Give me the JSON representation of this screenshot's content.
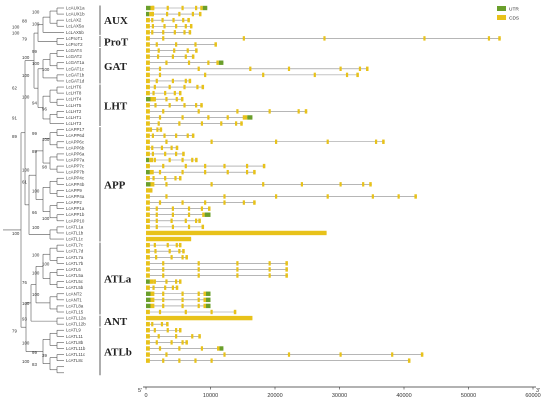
{
  "legend": {
    "utr_label": "UTR",
    "cds_label": "CDS",
    "utr_color": "#6a9f2b",
    "cds_color": "#e8c21a"
  },
  "axis": {
    "ticks": [
      "0",
      "10000",
      "20000",
      "30000",
      "40000",
      "50000",
      "60000"
    ],
    "max": 60000,
    "five_prime": "5'",
    "three_prime": "3'"
  },
  "families": [
    {
      "name": "AUX",
      "start": 0,
      "end": 4
    },
    {
      "name": "ProT",
      "start": 5,
      "end": 6
    },
    {
      "name": "GAT",
      "start": 7,
      "end": 12
    },
    {
      "name": "LHT",
      "start": 13,
      "end": 19
    },
    {
      "name": "APP",
      "start": 20,
      "end": 38
    },
    {
      "name": "ATLa",
      "start": 39,
      "end": 50
    },
    {
      "name": "ANT",
      "start": 51,
      "end": 52
    },
    {
      "name": "ATLb",
      "start": 53,
      "end": 60
    }
  ],
  "genes": [
    {
      "name": "LcAUX1a",
      "len": 9500,
      "utr5": 700,
      "utr3": 700,
      "exons": [
        900,
        3200,
        5500,
        7600
      ]
    },
    {
      "name": "LcAUX1b",
      "len": 8600,
      "utr5": 500,
      "utr3": 0,
      "exons": [
        900,
        3100,
        5000,
        7100
      ]
    },
    {
      "name": "LcLAX2",
      "len": 6800,
      "utr5": 0,
      "utr3": 0,
      "exons": [
        800,
        2400,
        4100,
        5600
      ]
    },
    {
      "name": "LcLAX5a",
      "len": 7200,
      "utr5": 0,
      "utr3": 0,
      "exons": [
        900,
        2700,
        4500,
        6000
      ]
    },
    {
      "name": "LcLAX5b",
      "len": 7000,
      "utr5": 0,
      "utr3": 0,
      "exons": [
        800,
        2500,
        4300,
        5800
      ]
    },
    {
      "name": "LcProT1",
      "len": 55000,
      "utr5": 0,
      "utr3": 0,
      "exons": [
        2500,
        15000,
        27500,
        43000,
        53000
      ]
    },
    {
      "name": "LcProT2",
      "len": 11000,
      "utr5": 0,
      "utr3": 0,
      "exons": [
        1500,
        4500,
        7500
      ]
    },
    {
      "name": "LcGAT4",
      "len": 8000,
      "utr5": 0,
      "utr3": 0,
      "exons": [
        1800,
        4200,
        6300
      ]
    },
    {
      "name": "LcGAT2",
      "len": 7500,
      "utr5": 0,
      "utr3": 0,
      "exons": [
        1700,
        4000,
        6000
      ]
    },
    {
      "name": "LcGAT1a",
      "len": 12000,
      "utr5": 0,
      "utr3": 700,
      "exons": [
        3000,
        6500,
        9500
      ]
    },
    {
      "name": "LcGAT1c",
      "len": 34500,
      "utr5": 0,
      "utr3": 0,
      "exons": [
        2000,
        8000,
        16000,
        22000,
        30000,
        33000
      ]
    },
    {
      "name": "LcGAT1b",
      "len": 33000,
      "utr5": 0,
      "utr3": 0,
      "exons": [
        2000,
        9000,
        18000,
        26000,
        31000
      ]
    },
    {
      "name": "LcGAT1d",
      "len": 7000,
      "utr5": 0,
      "utr3": 0,
      "exons": [
        1500,
        4000,
        6000
      ]
    },
    {
      "name": "LcLHT6",
      "len": 9000,
      "utr5": 0,
      "utr3": 0,
      "exons": [
        1200,
        3500,
        5800,
        7800
      ]
    },
    {
      "name": "LcLHT8",
      "len": 5500,
      "utr5": 0,
      "utr3": 0,
      "exons": [
        1000,
        2800,
        4300
      ]
    },
    {
      "name": "LcLHT4",
      "len": 5800,
      "utr5": 700,
      "utr3": 0,
      "exons": [
        1200,
        3000,
        4600
      ]
    },
    {
      "name": "LcLHT5",
      "len": 8800,
      "utr5": 0,
      "utr3": 0,
      "exons": [
        1300,
        3500,
        5800,
        7600
      ]
    },
    {
      "name": "LcLHT2",
      "len": 25000,
      "utr5": 0,
      "utr3": 0,
      "exons": [
        2500,
        8000,
        14000,
        19000,
        23500
      ]
    },
    {
      "name": "LcLHT1",
      "len": 16500,
      "utr5": 0,
      "utr3": 800,
      "exons": [
        2000,
        5500,
        9500,
        12500,
        15000
      ]
    },
    {
      "name": "LcLHT3",
      "len": 15000,
      "utr5": 0,
      "utr3": 0,
      "exons": [
        1800,
        5000,
        8500,
        11500,
        13800
      ]
    },
    {
      "name": "LcAPP17",
      "len": 2500,
      "utr5": 0,
      "utr3": 0,
      "exons": [
        600,
        1600
      ]
    },
    {
      "name": "LcAPP6d",
      "len": 7500,
      "utr5": 0,
      "utr3": 0,
      "exons": [
        900,
        2700,
        4500,
        6300
      ]
    },
    {
      "name": "LcAPP6c",
      "len": 37000,
      "utr5": 0,
      "utr3": 0,
      "exons": [
        3000,
        10000,
        20000,
        28000,
        35500
      ]
    },
    {
      "name": "LcAPP6b",
      "len": 5000,
      "utr5": 0,
      "utr3": 0,
      "exons": [
        800,
        2300,
        3800
      ]
    },
    {
      "name": "LcAPP6a",
      "len": 6000,
      "utr5": 0,
      "utr3": 0,
      "exons": [
        900,
        2800,
        4500
      ]
    },
    {
      "name": "LcAPP7a",
      "len": 8000,
      "utr5": 500,
      "utr3": 0,
      "exons": [
        1200,
        3500,
        5500,
        7000
      ]
    },
    {
      "name": "LcAPP7c",
      "len": 18500,
      "utr5": 0,
      "utr3": 0,
      "exons": [
        2500,
        6000,
        9000,
        12000,
        15500
      ]
    },
    {
      "name": "LcAPP7b",
      "len": 17000,
      "utr5": 600,
      "utr3": 0,
      "exons": [
        2000,
        5500,
        9000,
        12500,
        15500
      ]
    },
    {
      "name": "LcAPP4c",
      "len": 5500,
      "utr5": 0,
      "utr3": 0,
      "exons": [
        1000,
        2800,
        4400
      ]
    },
    {
      "name": "LcAPP4b",
      "len": 35000,
      "utr5": 700,
      "utr3": 0,
      "exons": [
        3000,
        10000,
        18000,
        24000,
        30000,
        33500
      ]
    },
    {
      "name": "LcAPP9",
      "len": 1000,
      "utr5": 0,
      "utr3": 0,
      "exons": []
    },
    {
      "name": "LcAPP4a",
      "len": 42000,
      "utr5": 0,
      "utr3": 0,
      "exons": [
        3000,
        12000,
        20000,
        28000,
        35000,
        39000
      ]
    },
    {
      "name": "LcAPP2",
      "len": 17000,
      "utr5": 0,
      "utr3": 0,
      "exons": [
        2000,
        5500,
        9000,
        12000,
        15000
      ]
    },
    {
      "name": "LcAPP1a",
      "len": 10000,
      "utr5": 0,
      "utr3": 0,
      "exons": [
        1500,
        4000,
        6500,
        8500
      ]
    },
    {
      "name": "LcAPP1b",
      "len": 10000,
      "utr5": 0,
      "utr3": 900,
      "exons": [
        1500,
        4000,
        6500
      ]
    },
    {
      "name": "LcAPP10",
      "len": 8500,
      "utr5": 0,
      "utr3": 0,
      "exons": [
        1500,
        3800,
        6000,
        7600
      ]
    },
    {
      "name": "LcATL1a",
      "len": 9000,
      "utr5": 0,
      "utr3": 0,
      "exons": [
        1500,
        4000,
        6500
      ]
    },
    {
      "name": "LcATL1b",
      "len": 28000,
      "utr5": 0,
      "utr3": 0,
      "exons": []
    },
    {
      "name": "LcATL1c",
      "len": 7000,
      "utr5": 0,
      "utr3": 0,
      "exons": []
    },
    {
      "name": "LcATL7c",
      "len": 5500,
      "utr5": 0,
      "utr3": 0,
      "exons": [
        1200,
        3200,
        4600
      ]
    },
    {
      "name": "LcATL7d",
      "len": 6000,
      "utr5": 0,
      "utr3": 0,
      "exons": [
        1300,
        3500,
        5000
      ]
    },
    {
      "name": "LcATL7a",
      "len": 6500,
      "utr5": 0,
      "utr3": 0,
      "exons": [
        1400,
        3800,
        5500
      ]
    },
    {
      "name": "LcATL7b",
      "len": 22000,
      "utr5": 0,
      "utr3": 0,
      "exons": [
        2500,
        8000,
        14000,
        19000
      ]
    },
    {
      "name": "LcATL6",
      "len": 22000,
      "utr5": 0,
      "utr3": 0,
      "exons": [
        2500,
        8000,
        14000,
        19000
      ]
    },
    {
      "name": "LcATL5a",
      "len": 22000,
      "utr5": 0,
      "utr3": 0,
      "exons": [
        2500,
        8000,
        14000,
        19000
      ]
    },
    {
      "name": "LcATL5c",
      "len": 5500,
      "utr5": 600,
      "utr3": 0,
      "exons": [
        1200,
        3000,
        4500
      ]
    },
    {
      "name": "LcATL5b",
      "len": 5000,
      "utr5": 0,
      "utr3": 0,
      "exons": [
        1000,
        2800,
        4000
      ]
    },
    {
      "name": "LcANT2",
      "len": 10000,
      "utr5": 700,
      "utr3": 700,
      "exons": [
        2500,
        5500,
        8000
      ]
    },
    {
      "name": "LcANT1",
      "len": 10000,
      "utr5": 700,
      "utr3": 700,
      "exons": [
        2500,
        5500,
        8000
      ]
    },
    {
      "name": "LcATL8a",
      "len": 10000,
      "utr5": 700,
      "utr3": 700,
      "exons": [
        2500,
        5500,
        8000
      ]
    },
    {
      "name": "LcATL15",
      "len": 14000,
      "utr5": 0,
      "utr3": 0,
      "exons": [
        2000,
        6000,
        10000
      ]
    },
    {
      "name": "LcATL12a",
      "len": 16500,
      "utr5": 0,
      "utr3": 0,
      "exons": []
    },
    {
      "name": "LcATL12b",
      "len": 3500,
      "utr5": 0,
      "utr3": 0,
      "exons": [
        800,
        2300
      ]
    },
    {
      "name": "LcATL9",
      "len": 5500,
      "utr5": 0,
      "utr3": 0,
      "exons": [
        1200,
        3200,
        4500
      ]
    },
    {
      "name": "LcATL11",
      "len": 8500,
      "utr5": 0,
      "utr3": 0,
      "exons": [
        1800,
        4500,
        7000
      ]
    },
    {
      "name": "LcATL8b",
      "len": 6500,
      "utr5": 0,
      "utr3": 0,
      "exons": [
        1500,
        3800,
        5500
      ]
    },
    {
      "name": "LcATL11b",
      "len": 12000,
      "utr5": 0,
      "utr3": 600,
      "exons": [
        2000,
        5000,
        8500
      ]
    },
    {
      "name": "LcATL11c",
      "len": 43000,
      "utr5": 0,
      "utr3": 0,
      "exons": [
        3000,
        12000,
        22000,
        30000,
        38000
      ]
    },
    {
      "name": "LcATL8c",
      "len": 41000,
      "utr5": 0,
      "utr3": 0,
      "exons": [
        2500,
        5000,
        7500,
        10000
      ]
    }
  ],
  "bootstraps": [
    {
      "v": "100",
      "row": 1,
      "col": 2
    },
    {
      "v": "100",
      "row": 3,
      "col": 2
    },
    {
      "v": "88",
      "row": 2.5,
      "col": 1
    },
    {
      "v": "100",
      "row": 3.5,
      "col": 0
    },
    {
      "v": "79",
      "row": 5.5,
      "col": 1
    },
    {
      "v": "100",
      "row": 4.5,
      "col": 0
    },
    {
      "v": "99",
      "row": 7.5,
      "col": 2
    },
    {
      "v": "100",
      "row": 8.5,
      "col": 1
    },
    {
      "v": "100",
      "row": 10.5,
      "col": 3
    },
    {
      "v": "100",
      "row": 9.5,
      "col": 2
    },
    {
      "v": "100",
      "row": 11.5,
      "col": 1
    },
    {
      "v": "62",
      "row": 13.5,
      "col": 0
    },
    {
      "v": "94",
      "row": 16,
      "col": 2
    },
    {
      "v": "96",
      "row": 17,
      "col": 3
    },
    {
      "v": "100",
      "row": 15,
      "col": 1
    },
    {
      "v": "91",
      "row": 18.5,
      "col": 0
    },
    {
      "v": "99",
      "row": 21,
      "col": 2
    },
    {
      "v": "100",
      "row": 22,
      "col": 3
    },
    {
      "v": "89",
      "row": 24,
      "col": 2
    },
    {
      "v": "98",
      "row": 26.5,
      "col": 3
    },
    {
      "v": "100",
      "row": 27,
      "col": 1
    },
    {
      "v": "61",
      "row": 29,
      "col": 1
    },
    {
      "v": "100",
      "row": 30.5,
      "col": 2
    },
    {
      "v": "66",
      "row": 34,
      "col": 2
    },
    {
      "v": "100",
      "row": 35,
      "col": 3
    },
    {
      "v": "100",
      "row": 36.5,
      "col": 2
    },
    {
      "v": "100",
      "row": 37.5,
      "col": 0
    },
    {
      "v": "89",
      "row": 21.5,
      "col": 0
    },
    {
      "v": "100",
      "row": 41,
      "col": 2
    },
    {
      "v": "100",
      "row": 42.5,
      "col": 3
    },
    {
      "v": "100",
      "row": 44,
      "col": 2
    },
    {
      "v": "76",
      "row": 45.5,
      "col": 1
    },
    {
      "v": "100",
      "row": 47.5,
      "col": 2
    },
    {
      "v": "100",
      "row": 49,
      "col": 1
    },
    {
      "v": "93",
      "row": 51.5,
      "col": 1
    },
    {
      "v": "79",
      "row": 53.5,
      "col": 0
    },
    {
      "v": "100",
      "row": 55.5,
      "col": 1
    },
    {
      "v": "99",
      "row": 57,
      "col": 2
    },
    {
      "v": "39",
      "row": 57.5,
      "col": 3
    },
    {
      "v": "100",
      "row": 58.5,
      "col": 1
    },
    {
      "v": "83",
      "row": 59,
      "col": 2
    }
  ]
}
